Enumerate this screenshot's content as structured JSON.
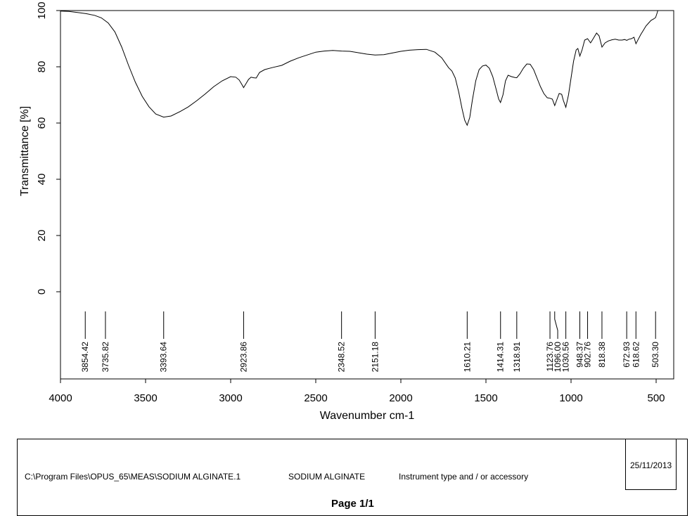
{
  "chart_data": {
    "type": "line",
    "xlabel": "Wavenumber cm-1",
    "ylabel": "Transmittance [%]",
    "xlim": [
      4000,
      450
    ],
    "ylim": [
      0,
      100
    ],
    "x_ticks": [
      "4000",
      "3500",
      "3000",
      "2500",
      "2000",
      "1500",
      "1000",
      "500"
    ],
    "y_ticks": [
      "0",
      "20",
      "40",
      "60",
      "80",
      "100"
    ],
    "grid": false,
    "series": [
      {
        "x": [
          4000,
          3950,
          3900,
          3850,
          3800,
          3760,
          3720,
          3680,
          3640,
          3600,
          3560,
          3520,
          3480,
          3440,
          3393.64,
          3350,
          3300,
          3250,
          3200,
          3150,
          3100,
          3050,
          3000,
          2970,
          2950,
          2935,
          2923.86,
          2910,
          2895,
          2880,
          2865,
          2850,
          2830,
          2800,
          2750,
          2700,
          2650,
          2600,
          2550,
          2500,
          2450,
          2400,
          2348.52,
          2300,
          2250,
          2200,
          2151.18,
          2100,
          2050,
          2000,
          1950,
          1900,
          1850,
          1800,
          1760,
          1720,
          1700,
          1680,
          1660,
          1640,
          1625,
          1610.21,
          1595,
          1580,
          1560,
          1540,
          1520,
          1500,
          1480,
          1460,
          1440,
          1425,
          1414.31,
          1400,
          1385,
          1370,
          1350,
          1330,
          1318.91,
          1300,
          1280,
          1260,
          1240,
          1220,
          1200,
          1180,
          1160,
          1140,
          1123.76,
          1110,
          1096,
          1085,
          1070,
          1055,
          1045,
          1030.56,
          1015,
          1000,
          985,
          970,
          960,
          948.37,
          935,
          920,
          902.76,
          885,
          870,
          850,
          835,
          818.38,
          800,
          780,
          760,
          740,
          720,
          700,
          685,
          672.93,
          660,
          645,
          630,
          618.62,
          605,
          590,
          575,
          560,
          545,
          530,
          515,
          503.3,
          495,
          490
        ],
        "values": [
          99.8,
          99.7,
          99.3,
          98.9,
          98.3,
          97.4,
          95.6,
          92.4,
          87.0,
          80.5,
          74.5,
          69.5,
          65.8,
          63.2,
          62.1,
          62.5,
          64.0,
          65.7,
          67.9,
          70.3,
          72.9,
          75.0,
          76.5,
          76.3,
          75.3,
          73.8,
          72.6,
          74.0,
          75.5,
          76.3,
          76.1,
          76.0,
          78.0,
          79.0,
          79.8,
          80.5,
          82.0,
          83.2,
          84.2,
          85.2,
          85.6,
          85.8,
          85.6,
          85.5,
          85.0,
          84.5,
          84.2,
          84.3,
          84.9,
          85.5,
          85.9,
          86.1,
          86.2,
          85.2,
          83.2,
          79.7,
          78.5,
          76.0,
          71.0,
          65.0,
          61.0,
          59.2,
          62.0,
          68.0,
          75.0,
          79.0,
          80.3,
          80.6,
          79.5,
          76.5,
          72.0,
          68.5,
          67.3,
          70.0,
          75.0,
          77.0,
          76.5,
          76.2,
          76.1,
          77.5,
          79.5,
          81.0,
          80.9,
          79.0,
          76.0,
          73.0,
          70.5,
          69.0,
          68.8,
          68.5,
          66.2,
          68.0,
          70.5,
          70.2,
          68.0,
          65.6,
          70.0,
          76.0,
          82.0,
          86.0,
          86.5,
          83.8,
          86.0,
          89.5,
          90.0,
          88.5,
          90.0,
          92.0,
          91.0,
          87.0,
          88.5,
          89.2,
          89.6,
          89.8,
          89.5,
          89.5,
          89.7,
          89.4,
          89.8,
          90.0,
          90.5,
          88.2,
          89.8,
          91.5,
          93.0,
          94.5,
          95.5,
          96.5,
          97.0,
          97.5,
          99.0,
          100.0
        ]
      }
    ],
    "peaks": [
      "3854.42",
      "3735.82",
      "3393.64",
      "2923.86",
      "2348.52",
      "2151.18",
      "1610.21",
      "1414.31",
      "1318.91",
      "1123.76",
      "1096.00",
      "1030.56",
      "948.37",
      "902.76",
      "818.38",
      "672.93",
      "618.62",
      "503.30"
    ],
    "peak_x": [
      3854.42,
      3735.82,
      3393.64,
      2923.86,
      2348.52,
      2151.18,
      1610.21,
      1414.31,
      1318.91,
      1123.76,
      1096.0,
      1030.56,
      948.37,
      902.76,
      818.38,
      672.93,
      618.62,
      503.3
    ],
    "line_color": "#000000"
  },
  "footer": {
    "file_path": "C:\\Program Files\\OPUS_65\\MEAS\\SODIUM ALGINATE.1",
    "sample_name": "SODIUM ALGINATE",
    "instrument": "Instrument type and / or accessory",
    "date": "25/11/2013",
    "page": "Page 1/1"
  }
}
